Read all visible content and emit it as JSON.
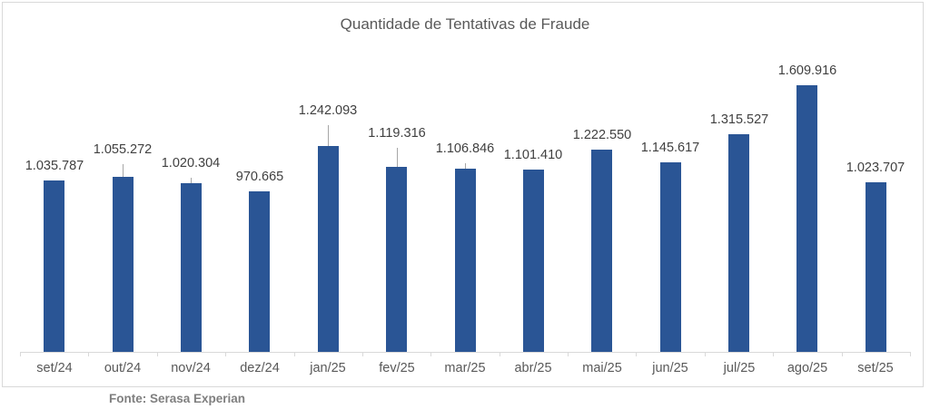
{
  "chart_data": {
    "type": "bar",
    "title": "Quantidade de Tentativas de Fraude",
    "xlabel": "",
    "ylabel": "",
    "categories": [
      "set/24",
      "out/24",
      "nov/24",
      "dez/24",
      "jan/25",
      "fev/25",
      "mar/25",
      "abr/25",
      "mai/25",
      "jun/25",
      "jul/25",
      "ago/25",
      "set/25"
    ],
    "values": [
      1035787,
      1055272,
      1020304,
      970665,
      1242093,
      1119316,
      1106846,
      1101410,
      1222550,
      1145617,
      1315527,
      1609916,
      1023707
    ],
    "value_labels": [
      "1.035.787",
      "1.055.272",
      "1.020.304",
      "970.665",
      "1.242.093",
      "1.119.316",
      "1.106.846",
      "1.101.410",
      "1.222.550",
      "1.145.617",
      "1.315.527",
      "1.609.916",
      "1.023.707"
    ],
    "ylim": [
      0,
      1609916
    ],
    "grid": false,
    "legend": null,
    "bar_color": "#2a5595",
    "source": "Fonte: Serasa Experian"
  }
}
